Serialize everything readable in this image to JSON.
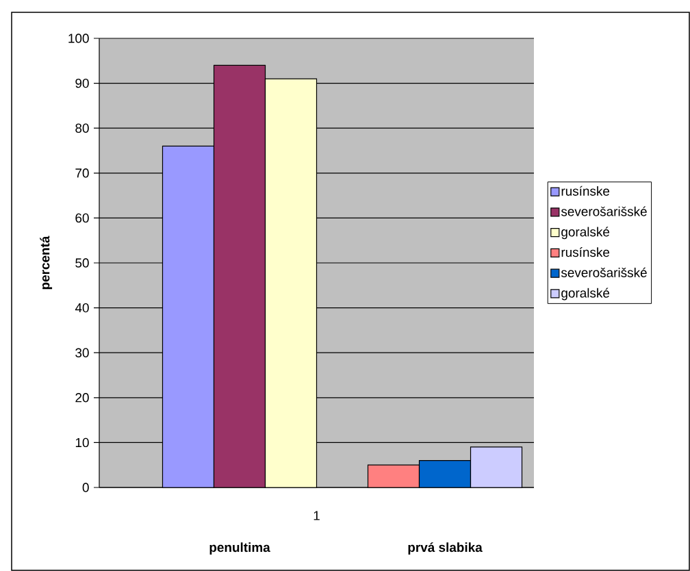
{
  "chart_data": {
    "type": "bar",
    "ylabel": "percentá",
    "categories": [
      "1"
    ],
    "series": [
      {
        "name": "rusínske",
        "color": "#9999ff",
        "values": [
          76
        ]
      },
      {
        "name": "severošarišské",
        "color": "#993366",
        "values": [
          94
        ]
      },
      {
        "name": "goralské",
        "color": "#ffffcc",
        "values": [
          91
        ]
      },
      {
        "name": "rusínske",
        "color": "#ff8080",
        "values": [
          5
        ]
      },
      {
        "name": "severošarišské",
        "color": "#0066cc",
        "values": [
          6
        ]
      },
      {
        "name": "goralské",
        "color": "#ccccff",
        "values": [
          9
        ]
      }
    ],
    "ylim": [
      0,
      100
    ],
    "yticks": [
      0,
      10,
      20,
      30,
      40,
      50,
      60,
      70,
      80,
      90,
      100
    ],
    "grid": "y",
    "legend": "right",
    "annotations": [
      "penultima",
      "prvá slabika"
    ]
  }
}
